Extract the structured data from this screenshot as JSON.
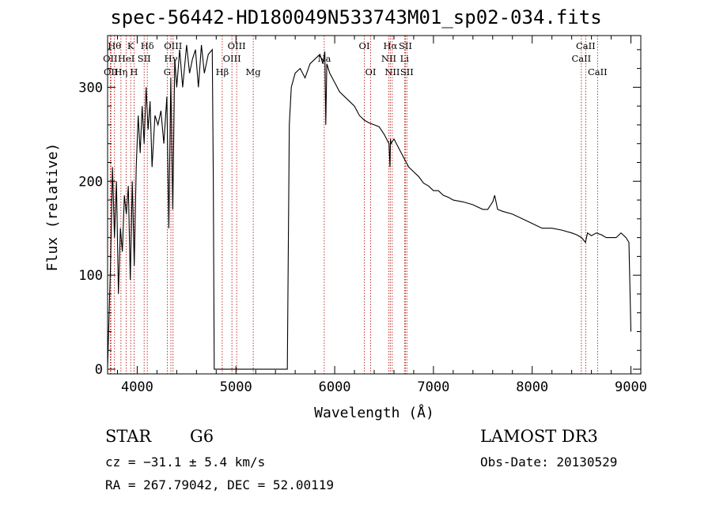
{
  "chart_data": {
    "type": "line",
    "title": "spec-56442-HD180049N533743M01_sp02-034.fits",
    "xlabel": "Wavelength (Å)",
    "ylabel": "Flux (relative)",
    "xlim": [
      3700,
      9100
    ],
    "ylim": [
      -5,
      355
    ],
    "xticks": [
      4000,
      5000,
      6000,
      7000,
      8000,
      9000
    ],
    "yticks": [
      0,
      100,
      200,
      300
    ],
    "series": [
      {
        "name": "flux",
        "x": [
          3700,
          3730,
          3750,
          3770,
          3790,
          3810,
          3830,
          3850,
          3870,
          3890,
          3910,
          3930,
          3950,
          3970,
          3990,
          4010,
          4030,
          4050,
          4070,
          4090,
          4110,
          4130,
          4150,
          4180,
          4210,
          4240,
          4270,
          4300,
          4320,
          4340,
          4360,
          4380,
          4400,
          4430,
          4460,
          4500,
          4530,
          4560,
          4590,
          4620,
          4650,
          4680,
          4720,
          4760,
          4770,
          4780,
          5520,
          5540,
          5560,
          5600,
          5650,
          5700,
          5750,
          5800,
          5850,
          5880,
          5900,
          5910,
          5920,
          5950,
          6000,
          6050,
          6100,
          6150,
          6200,
          6250,
          6300,
          6350,
          6400,
          6450,
          6500,
          6550,
          6560,
          6565,
          6570,
          6600,
          6650,
          6700,
          6750,
          6800,
          6850,
          6900,
          6950,
          7000,
          7050,
          7100,
          7150,
          7200,
          7300,
          7400,
          7500,
          7550,
          7600,
          7620,
          7650,
          7700,
          7800,
          7900,
          8000,
          8100,
          8200,
          8300,
          8400,
          8450,
          8500,
          8540,
          8560,
          8600,
          8650,
          8700,
          8750,
          8800,
          8850,
          8900,
          8950,
          8980,
          9000
        ],
        "y": [
          2,
          110,
          215,
          140,
          200,
          80,
          150,
          125,
          185,
          165,
          195,
          95,
          200,
          110,
          215,
          270,
          230,
          280,
          240,
          300,
          255,
          285,
          215,
          270,
          260,
          275,
          240,
          290,
          150,
          310,
          170,
          330,
          300,
          340,
          300,
          345,
          315,
          330,
          340,
          300,
          345,
          315,
          335,
          340,
          205,
          0,
          0,
          260,
          300,
          315,
          320,
          310,
          325,
          330,
          335,
          325,
          338,
          260,
          325,
          315,
          305,
          295,
          290,
          285,
          280,
          270,
          265,
          262,
          260,
          258,
          250,
          240,
          215,
          245,
          240,
          245,
          235,
          225,
          215,
          210,
          205,
          198,
          195,
          190,
          190,
          185,
          183,
          180,
          178,
          175,
          170,
          170,
          178,
          185,
          170,
          168,
          165,
          160,
          155,
          150,
          150,
          148,
          145,
          143,
          140,
          135,
          145,
          142,
          145,
          143,
          140,
          140,
          140,
          145,
          140,
          135,
          40
        ]
      }
    ],
    "lines": [
      {
        "w": 3727,
        "label": "OII",
        "row": 2
      },
      {
        "w": 3734,
        "label": "OII",
        "row": 3
      },
      {
        "w": 3770,
        "label": "Hθ",
        "row": 1
      },
      {
        "w": 3835,
        "label": "Hη",
        "row": 3
      },
      {
        "w": 3889,
        "label": "HeI",
        "row": 2
      },
      {
        "w": 3934,
        "label": "K",
        "row": 1
      },
      {
        "w": 3968,
        "label": "H",
        "row": 3
      },
      {
        "w": 4070,
        "label": "SII",
        "row": 2
      },
      {
        "w": 4102,
        "label": "Hδ",
        "row": 1
      },
      {
        "w": 4304,
        "label": "G",
        "row": 3
      },
      {
        "w": 4341,
        "label": "Hγ",
        "row": 2
      },
      {
        "w": 4363,
        "label": "OIII",
        "row": 1
      },
      {
        "w": 4861,
        "label": "Hβ",
        "row": 3
      },
      {
        "w": 4959,
        "label": "OIII",
        "row": 2
      },
      {
        "w": 5007,
        "label": "OIII",
        "row": 1
      },
      {
        "w": 5175,
        "label": "Mg",
        "row": 3
      },
      {
        "w": 5894,
        "label": "Na",
        "row": 2
      },
      {
        "w": 6300,
        "label": "OI",
        "row": 1
      },
      {
        "w": 6364,
        "label": "OI",
        "row": 3
      },
      {
        "w": 6548,
        "label": "NII",
        "row": 2
      },
      {
        "w": 6563,
        "label": "Hα",
        "row": 1
      },
      {
        "w": 6583,
        "label": "NII",
        "row": 3
      },
      {
        "w": 6707,
        "label": "Li",
        "row": 2
      },
      {
        "w": 6716,
        "label": "SII",
        "row": 1
      },
      {
        "w": 6731,
        "label": "SII",
        "row": 3
      },
      {
        "w": 8498,
        "label": "CaII",
        "row": 2
      },
      {
        "w": 8542,
        "label": "CaII",
        "row": 1
      },
      {
        "w": 8662,
        "label": "CaII",
        "row": 3
      }
    ]
  },
  "info": {
    "class_label": "STAR",
    "subclass_label": "G6",
    "survey": "LAMOST DR3",
    "cz": "cz = −31.1 ± 5.4 km/s",
    "obs_date": "Obs-Date: 20130529",
    "coords": "RA = 267.79042, DEC =  52.00119"
  }
}
